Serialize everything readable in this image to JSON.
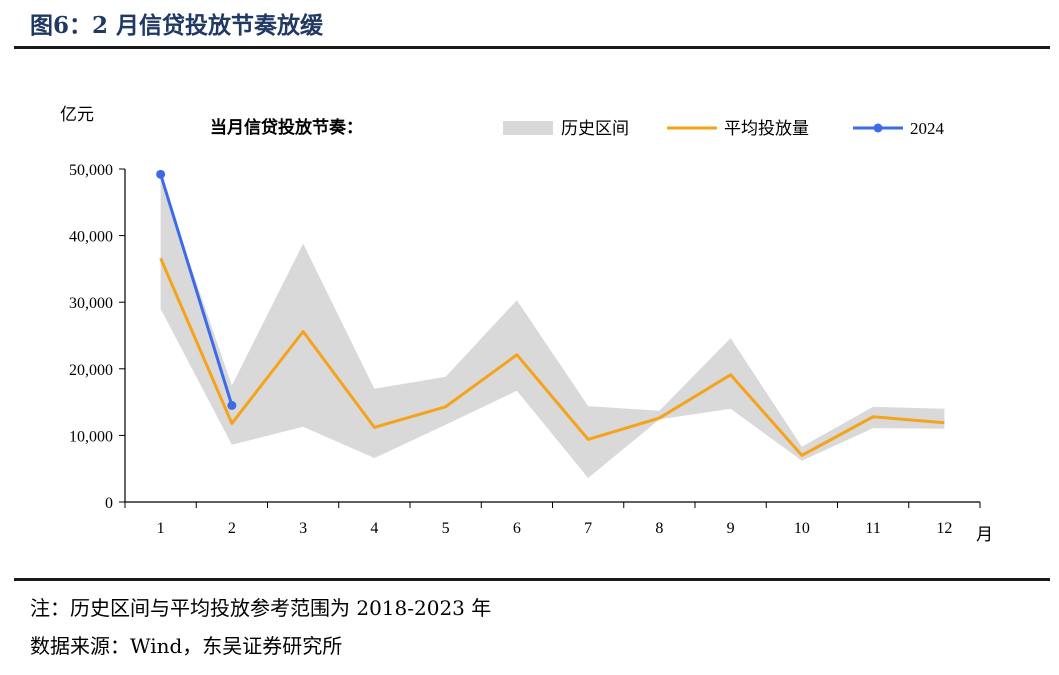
{
  "header": {
    "title": "图6：2 月信贷投放节奏放缓"
  },
  "footer": {
    "note": "注：历史区间与平均投放参考范围为 2018-2023 年",
    "source": "数据来源：Wind，东吴证券研究所"
  },
  "chart_data": {
    "type": "line",
    "subtitle": "当月信贷投放节奏：",
    "ylabel": "亿元",
    "xlabel": "月",
    "ylim": [
      0,
      50000
    ],
    "yticks": [
      0,
      10000,
      20000,
      30000,
      40000,
      50000
    ],
    "ytick_labels": [
      "0",
      "10,000",
      "20,000",
      "30,000",
      "40,000",
      "50,000"
    ],
    "categories": [
      "1",
      "2",
      "3",
      "4",
      "5",
      "6",
      "7",
      "8",
      "9",
      "10",
      "11",
      "12"
    ],
    "legend_position": "top-right",
    "grid": false,
    "band": {
      "name": "历史区间",
      "color": "#d9d9d9",
      "upper": [
        48500,
        17500,
        38800,
        17000,
        18800,
        30300,
        14400,
        13700,
        24600,
        8300,
        14300,
        14000
      ],
      "lower": [
        29000,
        8600,
        11300,
        6600,
        11600,
        16700,
        3600,
        12400,
        14000,
        6200,
        11100,
        11000
      ]
    },
    "series": [
      {
        "name": "平均投放量",
        "color": "#f5a31a",
        "values": [
          36600,
          11800,
          25600,
          11200,
          14300,
          22100,
          9400,
          12600,
          19100,
          7000,
          12800,
          11900
        ]
      },
      {
        "name": "2024",
        "color": "#3d6be8",
        "markers": true,
        "values": [
          49200,
          14500,
          null,
          null,
          null,
          null,
          null,
          null,
          null,
          null,
          null,
          null
        ]
      }
    ]
  }
}
